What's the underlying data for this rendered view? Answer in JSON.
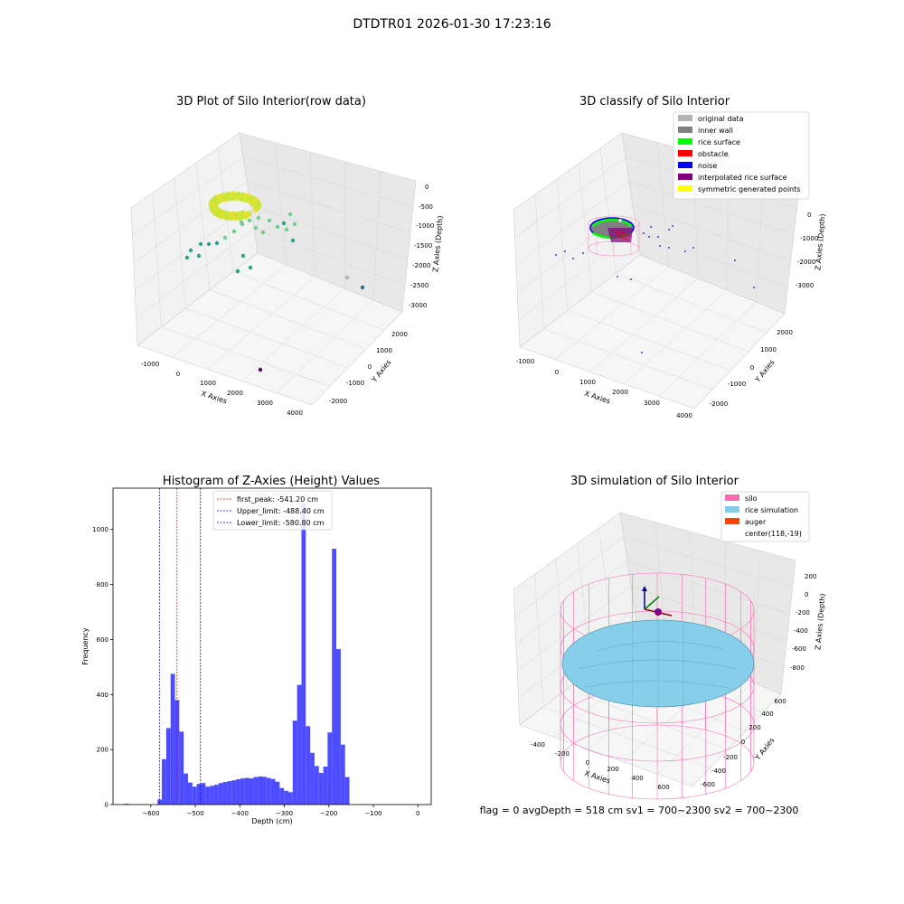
{
  "figure": {
    "suptitle": "DTDTR01 2026-01-30 17:23:16",
    "footer": "flag = 0     avgDepth = 518 cm  sv1 = 700~2300  sv2 = 700~2300"
  },
  "chart_data": [
    {
      "id": "raw",
      "type": "scatter",
      "projection": "3d",
      "title": "3D Plot of Silo Interior(row data)",
      "xlabel": "X Axies",
      "ylabel": "Y Axies",
      "zlabel": "Z Axies (Depth)",
      "x_ticks": [
        "-1000",
        "0",
        "1000",
        "2000",
        "3000",
        "4000"
      ],
      "y_ticks": [
        "-2000",
        "-1000",
        "0",
        "1000",
        "2000"
      ],
      "z_ticks": [
        "0",
        "-500",
        "-1000",
        "-1500",
        "-2000",
        "-2500",
        "-3000"
      ],
      "colors": {
        "dense_ring": "#c6e53a",
        "scatter_light": "#6dce8e",
        "scatter_mid": "#2aa488",
        "scatter_dark": "#2b6f8e",
        "far_point": "#4a0b56"
      }
    },
    {
      "id": "classify",
      "type": "scatter",
      "projection": "3d",
      "title": "3D classify of Silo Interior",
      "xlabel": "X Axies",
      "ylabel": "Y Axies",
      "zlabel": "Z Axies (Depth)",
      "x_ticks": [
        "-1000",
        "0",
        "1000",
        "2000",
        "3000",
        "4000"
      ],
      "y_ticks": [
        "-2000",
        "-1000",
        "0",
        "1000",
        "2000"
      ],
      "z_ticks": [
        "0",
        "-1000",
        "-2000",
        "-3000"
      ],
      "legend_position": "top-right",
      "legend": [
        {
          "label": "original data",
          "color": "#b3b3b3"
        },
        {
          "label": "inner wall",
          "color": "#808080"
        },
        {
          "label": "rice surface",
          "color": "#00ff00"
        },
        {
          "label": "obstacle",
          "color": "#ff0000"
        },
        {
          "label": "noise",
          "color": "#0000ff"
        },
        {
          "label": "interpolated rice surface",
          "color": "#800080"
        },
        {
          "label": "symmetric generated points",
          "color": "#ffff00"
        }
      ]
    },
    {
      "id": "hist",
      "type": "bar",
      "title": "Histogram of Z-Axies (Height) Values",
      "xlabel": "Depth (cm)",
      "ylabel": "Frequency",
      "xlim": [
        -685,
        30
      ],
      "ylim": [
        0,
        1150
      ],
      "x_ticks": [
        -600,
        -500,
        -400,
        -300,
        -200,
        -100,
        0
      ],
      "y_ticks": [
        0,
        200,
        400,
        600,
        800,
        1000
      ],
      "bar_color": "#4d4dff",
      "bins_start": -585,
      "bin_width": 9.8,
      "values": [
        18,
        165,
        278,
        475,
        380,
        265,
        113,
        80,
        65,
        75,
        78,
        65,
        68,
        72,
        78,
        82,
        85,
        88,
        92,
        95,
        97,
        95,
        100,
        102,
        101,
        97,
        93,
        83,
        60,
        50,
        45,
        305,
        435,
        1095,
        285,
        188,
        140,
        115,
        138,
        262,
        930,
        565,
        218,
        100
      ],
      "outlier_bins": [
        {
          "x": -660,
          "value": 3
        }
      ],
      "lines": [
        {
          "label": "first_peak: -541.20 cm",
          "x": -541.2,
          "color": "#ff0000"
        },
        {
          "label": "Upper_limit: -488.40 cm",
          "x": -488.4,
          "color": "#0000cc"
        },
        {
          "label": "Lower_limit: -580.80 cm",
          "x": -580.8,
          "color": "#0000cc"
        }
      ],
      "legend_position": "top-center"
    },
    {
      "id": "sim",
      "type": "surface",
      "projection": "3d",
      "title": "3D simulation of Silo Interior",
      "xlabel": "X Axies",
      "ylabel": "Y Axies",
      "zlabel": "Z Axies (Depth)",
      "x_ticks": [
        "-400",
        "-200",
        "0",
        "200",
        "400",
        "600"
      ],
      "y_ticks": [
        "-600",
        "-400",
        "-200",
        "0",
        "200",
        "400",
        "600"
      ],
      "z_ticks": [
        "200",
        "0",
        "-200",
        "-400",
        "-600",
        "-800"
      ],
      "legend_position": "top-right",
      "legend": [
        {
          "label": "silo",
          "color": "#ff69b4"
        },
        {
          "label": "rice simulation",
          "color": "#87ceeb"
        },
        {
          "label": "auger",
          "color": "#ff4500"
        },
        {
          "label": "center(118,-19)",
          "color": ""
        }
      ]
    }
  ]
}
